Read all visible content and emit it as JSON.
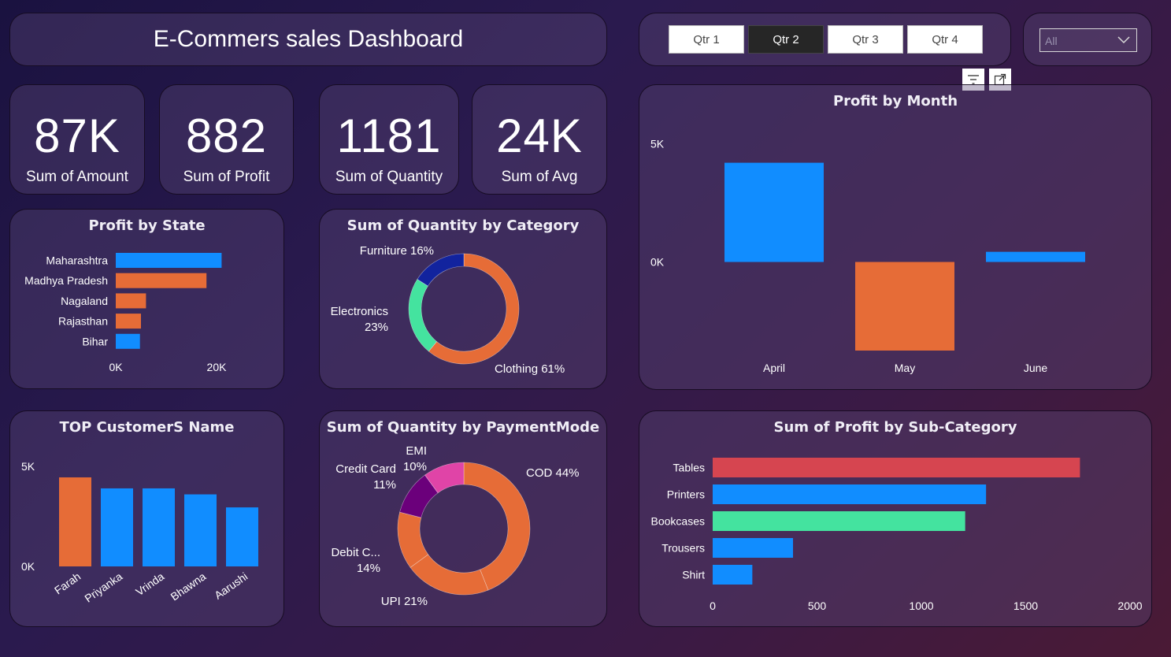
{
  "title": "E-Commers sales Dashboard",
  "quarters": [
    "Qtr 1",
    "Qtr 2",
    "Qtr 3",
    "Qtr 4"
  ],
  "selected_quarter": "Qtr 2",
  "dropdown": {
    "value": "All",
    "icon": "chevron-down-icon"
  },
  "visual_icons": [
    "filter-icon",
    "focus-mode-icon"
  ],
  "kpis": [
    {
      "value": "87K",
      "label": "Sum of Amount"
    },
    {
      "value": "882",
      "label": "Sum of Profit"
    },
    {
      "value": "1181",
      "label": "Sum of Quantity"
    },
    {
      "value": "24K",
      "label": "Sum of Avg"
    }
  ],
  "colors": {
    "blue": "#118dff",
    "orange": "#e66c37",
    "navy": "#12239e",
    "green": "#44e39f",
    "red": "#d64550",
    "purple": "#6b007b",
    "pink": "#e044a7"
  },
  "chart_data": [
    {
      "id": "profit_by_state",
      "type": "bar",
      "orientation": "horizontal",
      "title": "Profit by State",
      "categories": [
        "Maharashtra",
        "Madhya Pradesh",
        "Nagaland",
        "Rajasthan",
        "Bihar"
      ],
      "values": [
        21000,
        18000,
        6000,
        5000,
        4800
      ],
      "bar_colors": [
        "#118dff",
        "#e66c37",
        "#e66c37",
        "#e66c37",
        "#118dff"
      ],
      "xticks": [
        "0K",
        "20K"
      ],
      "xlim": [
        0,
        20000
      ]
    },
    {
      "id": "quantity_by_category",
      "type": "pie",
      "donut": true,
      "title": "Sum of Quantity by Category",
      "slices": [
        {
          "label": "Clothing",
          "pct_label": "61%",
          "value": 61,
          "color": "#e66c37"
        },
        {
          "label": "Electronics",
          "pct_label": "23%",
          "value": 23,
          "color": "#44e39f"
        },
        {
          "label": "Furniture",
          "pct_label": "16%",
          "value": 16,
          "color": "#12239e"
        }
      ]
    },
    {
      "id": "profit_by_month",
      "type": "bar",
      "title": "Profit by Month",
      "categories": [
        "April",
        "May",
        "June"
      ],
      "values": [
        4200,
        -3750,
        430
      ],
      "bar_colors": [
        "#118dff",
        "#e66c37",
        "#118dff"
      ],
      "yticks": [
        "5K",
        "0K"
      ],
      "ylim": [
        -3750,
        5000
      ]
    },
    {
      "id": "top_customers",
      "type": "bar",
      "title": "TOP CustomerS Name",
      "categories": [
        "Farah",
        "Priyanka",
        "Vrinda",
        "Bhawna",
        "Aarushi"
      ],
      "values": [
        4450,
        3900,
        3900,
        3600,
        2950
      ],
      "bar_colors": [
        "#e66c37",
        "#118dff",
        "#118dff",
        "#118dff",
        "#118dff"
      ],
      "yticks": [
        "5K",
        "0K"
      ],
      "ylim": [
        0,
        5000
      ]
    },
    {
      "id": "quantity_by_paymentmode",
      "type": "pie",
      "donut": true,
      "title": "Sum of Quantity by PaymentMode",
      "slices": [
        {
          "label": "COD",
          "pct_label": "44%",
          "value": 44,
          "color": "#e66c37"
        },
        {
          "label": "UPI",
          "pct_label": "21%",
          "value": 21,
          "color": "#e66c37"
        },
        {
          "label": "Debit C...",
          "pct_label": "14%",
          "value": 14,
          "color": "#e66c37"
        },
        {
          "label": "Credit Card",
          "pct_label": "11%",
          "value": 11,
          "color": "#6b007b"
        },
        {
          "label": "EMI",
          "pct_label": "10%",
          "value": 10,
          "color": "#e044a7"
        }
      ]
    },
    {
      "id": "profit_by_subcategory",
      "type": "bar",
      "orientation": "horizontal",
      "title": "Sum of Profit by Sub-Category",
      "categories": [
        "Tables",
        "Printers",
        "Bookcases",
        "Trousers",
        "Shirt"
      ],
      "values": [
        1760,
        1310,
        1210,
        385,
        190
      ],
      "bar_colors": [
        "#d64550",
        "#118dff",
        "#44e39f",
        "#118dff",
        "#118dff"
      ],
      "xticks": [
        "0",
        "500",
        "1000",
        "1500",
        "2000"
      ],
      "xlim": [
        0,
        2000
      ]
    }
  ]
}
